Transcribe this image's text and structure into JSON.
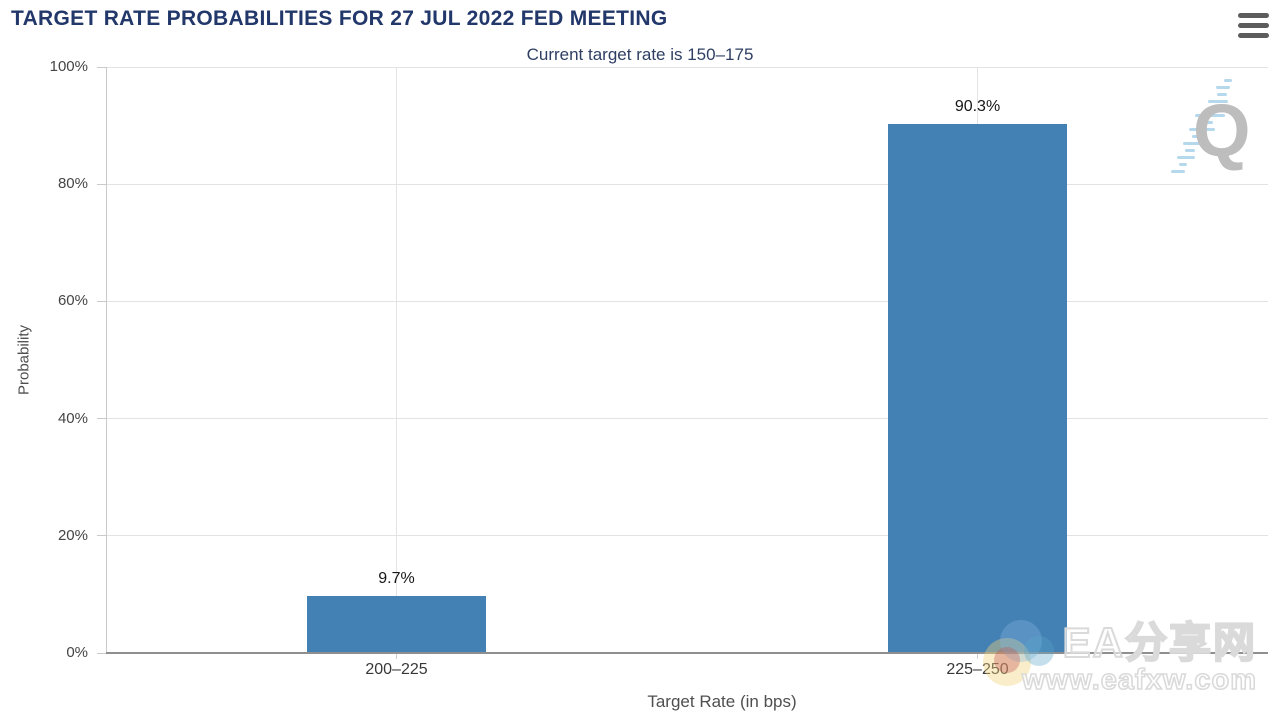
{
  "header": {
    "title": "TARGET RATE PROBABILITIES FOR 27 JUL 2022 FED MEETING"
  },
  "chart_data": {
    "type": "bar",
    "subtitle": "Current target rate is 150–175",
    "categories": [
      "200–225",
      "225–250"
    ],
    "values": [
      9.7,
      90.3
    ],
    "value_labels": [
      "9.7%",
      "90.3%"
    ],
    "xlabel": "Target Rate (in bps)",
    "ylabel": "Probability",
    "ylim": [
      0,
      100
    ],
    "yticks": [
      0,
      20,
      40,
      60,
      80,
      100
    ],
    "ytick_labels": [
      "0%",
      "20%",
      "40%",
      "60%",
      "80%",
      "100%"
    ],
    "grid": true,
    "legend": false,
    "bar_color": "#4380b4"
  },
  "watermark": {
    "logo_letter": "Q",
    "site_name": "EA分享网",
    "site_url": "www.eafxw.com"
  },
  "colors": {
    "title": "#22376a",
    "subtitle": "#2e3f63",
    "bar": "#4380b4",
    "grid": "#e3e3e3",
    "baseline": "#8f8f8f"
  }
}
